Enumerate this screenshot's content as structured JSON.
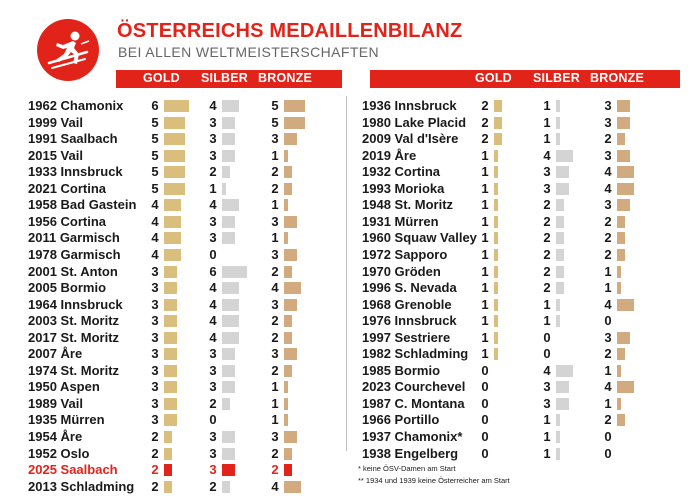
{
  "header": {
    "logo_icon": "skier-icon",
    "title": "ÖSTERREICHS MEDAILLENBILANZ",
    "subtitle": "BEI ALLEN WELTMEISTERSCHAFTEN"
  },
  "columns": {
    "gold": "GOLD",
    "silber": "SILBER",
    "bronze": "BRONZE"
  },
  "colors": {
    "accent": "#e2231a",
    "gold": "#d9be7d",
    "silber": "#d4d4d4",
    "bronze": "#d2aa80"
  },
  "chart_data": {
    "type": "table",
    "title": "ÖSTERREICHS MEDAILLENBILANZ",
    "subtitle": "BEI ALLEN WELTMEISTERSCHAFTEN",
    "series": [
      {
        "name": "GOLD"
      },
      {
        "name": "SILBER"
      },
      {
        "name": "BRONZE"
      }
    ],
    "rows": [
      {
        "label": "1962 Chamonix",
        "gold": 6,
        "silber": 4,
        "bronze": 5
      },
      {
        "label": "1999 Vail",
        "gold": 5,
        "silber": 3,
        "bronze": 5
      },
      {
        "label": "1991 Saalbach",
        "gold": 5,
        "silber": 3,
        "bronze": 3
      },
      {
        "label": "2015 Vail",
        "gold": 5,
        "silber": 3,
        "bronze": 1
      },
      {
        "label": "1933 Innsbruck",
        "gold": 5,
        "silber": 2,
        "bronze": 2
      },
      {
        "label": "2021 Cortina",
        "gold": 5,
        "silber": 1,
        "bronze": 2
      },
      {
        "label": "1958 Bad Gastein",
        "gold": 4,
        "silber": 4,
        "bronze": 1
      },
      {
        "label": "1956 Cortina",
        "gold": 4,
        "silber": 3,
        "bronze": 3
      },
      {
        "label": "2011 Garmisch",
        "gold": 4,
        "silber": 3,
        "bronze": 1
      },
      {
        "label": "1978 Garmisch",
        "gold": 4,
        "silber": 0,
        "bronze": 3
      },
      {
        "label": "2001 St. Anton",
        "gold": 3,
        "silber": 6,
        "bronze": 2
      },
      {
        "label": "2005 Bormio",
        "gold": 3,
        "silber": 4,
        "bronze": 4
      },
      {
        "label": "1964 Innsbruck",
        "gold": 3,
        "silber": 4,
        "bronze": 3
      },
      {
        "label": "2003 St. Moritz",
        "gold": 3,
        "silber": 4,
        "bronze": 2
      },
      {
        "label": "2017 St. Moritz",
        "gold": 3,
        "silber": 4,
        "bronze": 2
      },
      {
        "label": "2007 Åre",
        "gold": 3,
        "silber": 3,
        "bronze": 3
      },
      {
        "label": "1974 St. Moritz",
        "gold": 3,
        "silber": 3,
        "bronze": 2
      },
      {
        "label": "1950 Aspen",
        "gold": 3,
        "silber": 3,
        "bronze": 1
      },
      {
        "label": "1989 Vail",
        "gold": 3,
        "silber": 2,
        "bronze": 1
      },
      {
        "label": "1935 Mürren",
        "gold": 3,
        "silber": 0,
        "bronze": 1
      },
      {
        "label": "1954 Åre",
        "gold": 2,
        "silber": 3,
        "bronze": 3
      },
      {
        "label": "1952 Oslo",
        "gold": 2,
        "silber": 3,
        "bronze": 2
      },
      {
        "label": "2025 Saalbach",
        "gold": 2,
        "silber": 3,
        "bronze": 2,
        "highlight": true
      },
      {
        "label": "2013 Schladming",
        "gold": 2,
        "silber": 2,
        "bronze": 4
      },
      {
        "label": "1936 Innsbruck",
        "gold": 2,
        "silber": 1,
        "bronze": 3
      },
      {
        "label": "1980 Lake Placid",
        "gold": 2,
        "silber": 1,
        "bronze": 3
      },
      {
        "label": "2009 Val d'Isère",
        "gold": 2,
        "silber": 1,
        "bronze": 2
      },
      {
        "label": "2019 Åre",
        "gold": 1,
        "silber": 4,
        "bronze": 3
      },
      {
        "label": "1932 Cortina",
        "gold": 1,
        "silber": 3,
        "bronze": 4
      },
      {
        "label": "1993 Morioka",
        "gold": 1,
        "silber": 3,
        "bronze": 4
      },
      {
        "label": "1948 St. Moritz",
        "gold": 1,
        "silber": 2,
        "bronze": 3
      },
      {
        "label": "1931 Mürren",
        "gold": 1,
        "silber": 2,
        "bronze": 2
      },
      {
        "label": "1960 Squaw Valley",
        "gold": 1,
        "silber": 2,
        "bronze": 2
      },
      {
        "label": "1972 Sapporo",
        "gold": 1,
        "silber": 2,
        "bronze": 2
      },
      {
        "label": "1970 Gröden",
        "gold": 1,
        "silber": 2,
        "bronze": 1
      },
      {
        "label": "1996 S. Nevada",
        "gold": 1,
        "silber": 2,
        "bronze": 1
      },
      {
        "label": "1968 Grenoble",
        "gold": 1,
        "silber": 1,
        "bronze": 4
      },
      {
        "label": "1976 Innsbruck",
        "gold": 1,
        "silber": 1,
        "bronze": 0
      },
      {
        "label": "1997 Sestriere",
        "gold": 1,
        "silber": 0,
        "bronze": 3
      },
      {
        "label": "1982 Schladming",
        "gold": 1,
        "silber": 0,
        "bronze": 2
      },
      {
        "label": "1985 Bormio",
        "gold": 0,
        "silber": 4,
        "bronze": 1
      },
      {
        "label": "2023 Courchevel",
        "gold": 0,
        "silber": 3,
        "bronze": 4
      },
      {
        "label": "1987 C. Montana",
        "gold": 0,
        "silber": 3,
        "bronze": 1
      },
      {
        "label": "1966 Portillo",
        "gold": 0,
        "silber": 1,
        "bronze": 2
      },
      {
        "label": "1937 Chamonix*",
        "gold": 0,
        "silber": 1,
        "bronze": 0
      },
      {
        "label": "1938 Engelberg",
        "gold": 0,
        "silber": 1,
        "bronze": 0
      }
    ]
  },
  "footnotes": {
    "note1": "* keine ÖSV-Damen am Start",
    "note2": "** 1934 und 1939 keine Österreicher am Start"
  }
}
